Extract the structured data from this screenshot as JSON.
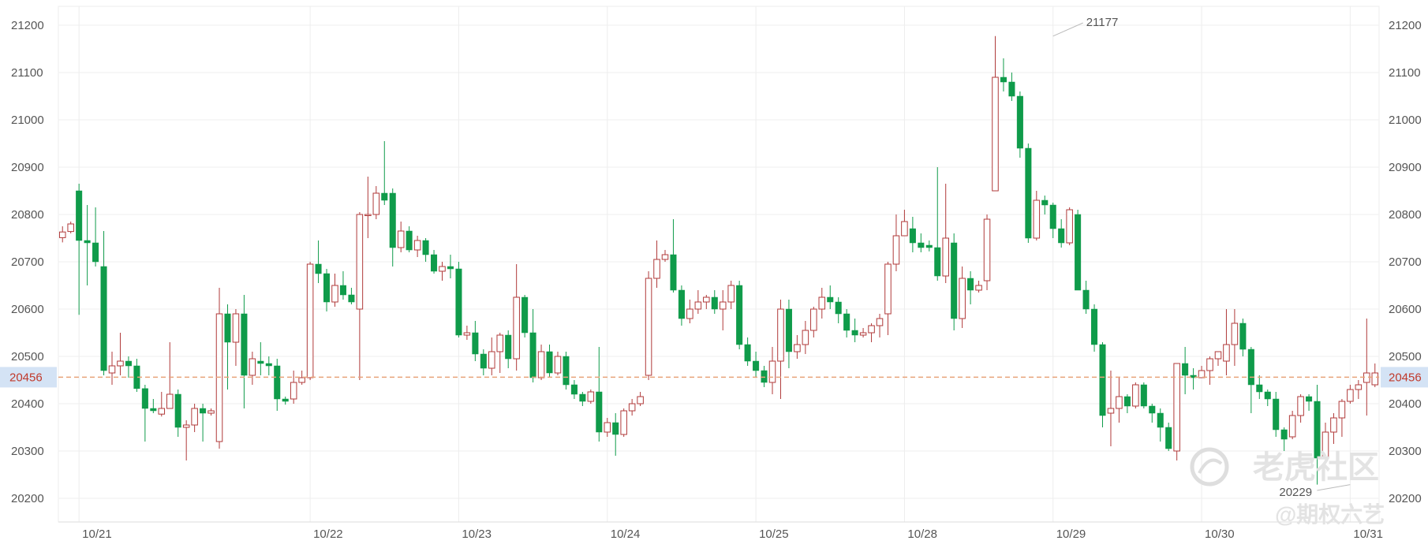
{
  "chart_data": {
    "type": "candlestick",
    "y_ticks": [
      20200,
      20300,
      20400,
      20500,
      20600,
      20700,
      20800,
      20900,
      21000,
      21100,
      21200
    ],
    "ylim": [
      20150,
      21240
    ],
    "x_tick_labels": [
      {
        "label": "10/21",
        "index": 2
      },
      {
        "label": "10/22",
        "index": 30
      },
      {
        "label": "10/23",
        "index": 48
      },
      {
        "label": "10/24",
        "index": 66
      },
      {
        "label": "10/25",
        "index": 84
      },
      {
        "label": "10/28",
        "index": 102
      },
      {
        "label": "10/29",
        "index": 120
      },
      {
        "label": "10/30",
        "index": 138
      },
      {
        "label": "10/31",
        "index": 156
      }
    ],
    "current_price": {
      "value": 20456,
      "label": "20456"
    },
    "max_annotation": {
      "label": "21177",
      "value": 21177,
      "index": 120
    },
    "min_annotation": {
      "label": "20229",
      "value": 20229,
      "index": 156
    },
    "colors": {
      "up": "#b03a3a",
      "down": "#0f9b4a",
      "current_line": "#e8a27a",
      "current_label_bg": "#d4e3f5"
    },
    "candles": [
      [
        20751,
        20763,
        20741,
        20775
      ],
      [
        20764,
        20780,
        20760,
        20785
      ],
      [
        20850,
        20745,
        20588,
        20865
      ],
      [
        20745,
        20740,
        20650,
        20820
      ],
      [
        20740,
        20700,
        20690,
        20815
      ],
      [
        20690,
        20470,
        20460,
        20765
      ],
      [
        20465,
        20480,
        20440,
        20510
      ],
      [
        20480,
        20490,
        20460,
        20550
      ],
      [
        20490,
        20480,
        20455,
        20500
      ],
      [
        20480,
        20432,
        20425,
        20495
      ],
      [
        20432,
        20390,
        20320,
        20440
      ],
      [
        20390,
        20385,
        20380,
        20410
      ],
      [
        20378,
        20390,
        20373,
        20425
      ],
      [
        20390,
        20420,
        20390,
        20530
      ],
      [
        20420,
        20350,
        20330,
        20430
      ],
      [
        20350,
        20355,
        20280,
        20365
      ],
      [
        20355,
        20390,
        20340,
        20400
      ],
      [
        20390,
        20380,
        20320,
        20400
      ],
      [
        20380,
        20385,
        20375,
        20390
      ],
      [
        20320,
        20590,
        20305,
        20645
      ],
      [
        20590,
        20530,
        20430,
        20610
      ],
      [
        20530,
        20590,
        20480,
        20600
      ],
      [
        20590,
        20460,
        20390,
        20630
      ],
      [
        20460,
        20495,
        20440,
        20510
      ],
      [
        20490,
        20485,
        20460,
        20530
      ],
      [
        20485,
        20480,
        20460,
        20500
      ],
      [
        20480,
        20410,
        20385,
        20495
      ],
      [
        20410,
        20405,
        20398,
        20415
      ],
      [
        20410,
        20445,
        20400,
        20470
      ],
      [
        20445,
        20455,
        20440,
        20470
      ],
      [
        20455,
        20695,
        20450,
        20700
      ],
      [
        20695,
        20675,
        20655,
        20745
      ],
      [
        20675,
        20615,
        20595,
        20685
      ],
      [
        20615,
        20650,
        20605,
        20675
      ],
      [
        20650,
        20630,
        20620,
        20680
      ],
      [
        20630,
        20615,
        20610,
        20645
      ],
      [
        20600,
        20800,
        20450,
        20805
      ],
      [
        20800,
        20800,
        20750,
        20880
      ],
      [
        20800,
        20845,
        20790,
        20860
      ],
      [
        20845,
        20830,
        20820,
        20955
      ],
      [
        20845,
        20730,
        20690,
        20855
      ],
      [
        20730,
        20765,
        20720,
        20785
      ],
      [
        20765,
        20725,
        20720,
        20775
      ],
      [
        20725,
        20745,
        20710,
        20755
      ],
      [
        20745,
        20715,
        20700,
        20750
      ],
      [
        20715,
        20680,
        20675,
        20725
      ],
      [
        20680,
        20690,
        20660,
        20700
      ],
      [
        20690,
        20685,
        20665,
        20715
      ],
      [
        20685,
        20545,
        20540,
        20700
      ],
      [
        20545,
        20550,
        20535,
        20565
      ],
      [
        20550,
        20505,
        20490,
        20575
      ],
      [
        20505,
        20475,
        20460,
        20515
      ],
      [
        20475,
        20510,
        20460,
        20540
      ],
      [
        20510,
        20545,
        20465,
        20550
      ],
      [
        20545,
        20495,
        20475,
        20555
      ],
      [
        20495,
        20625,
        20470,
        20695
      ],
      [
        20625,
        20550,
        20540,
        20630
      ],
      [
        20550,
        20455,
        20445,
        20600
      ],
      [
        20455,
        20510,
        20450,
        20525
      ],
      [
        20510,
        20465,
        20455,
        20525
      ],
      [
        20465,
        20500,
        20460,
        20510
      ],
      [
        20500,
        20440,
        20430,
        20510
      ],
      [
        20440,
        20420,
        20410,
        20450
      ],
      [
        20420,
        20405,
        20395,
        20425
      ],
      [
        20405,
        20425,
        20400,
        20430
      ],
      [
        20425,
        20340,
        20320,
        20520
      ],
      [
        20340,
        20360,
        20330,
        20370
      ],
      [
        20360,
        20335,
        20290,
        20380
      ],
      [
        20335,
        20385,
        20330,
        20390
      ],
      [
        20385,
        20400,
        20375,
        20410
      ],
      [
        20400,
        20415,
        20395,
        20425
      ],
      [
        20460,
        20665,
        20450,
        20680
      ],
      [
        20665,
        20705,
        20645,
        20745
      ],
      [
        20705,
        20715,
        20700,
        20725
      ],
      [
        20715,
        20640,
        20635,
        20790
      ],
      [
        20640,
        20580,
        20565,
        20650
      ],
      [
        20580,
        20600,
        20570,
        20620
      ],
      [
        20600,
        20615,
        20590,
        20640
      ],
      [
        20615,
        20625,
        20600,
        20630
      ],
      [
        20625,
        20600,
        20590,
        20640
      ],
      [
        20600,
        20615,
        20555,
        20640
      ],
      [
        20615,
        20650,
        20600,
        20660
      ],
      [
        20650,
        20525,
        20515,
        20660
      ],
      [
        20525,
        20490,
        20480,
        20540
      ],
      [
        20490,
        20470,
        20455,
        20510
      ],
      [
        20470,
        20445,
        20435,
        20480
      ],
      [
        20445,
        20490,
        20420,
        20520
      ],
      [
        20490,
        20600,
        20410,
        20620
      ],
      [
        20600,
        20510,
        20475,
        20620
      ],
      [
        20510,
        20525,
        20495,
        20545
      ],
      [
        20525,
        20555,
        20505,
        20575
      ],
      [
        20555,
        20600,
        20540,
        20605
      ],
      [
        20600,
        20625,
        20580,
        20645
      ],
      [
        20625,
        20615,
        20600,
        20650
      ],
      [
        20615,
        20590,
        20570,
        20625
      ],
      [
        20590,
        20555,
        20540,
        20600
      ],
      [
        20555,
        20545,
        20530,
        20580
      ],
      [
        20545,
        20550,
        20540,
        20560
      ],
      [
        20550,
        20565,
        20530,
        20570
      ],
      [
        20565,
        20580,
        20540,
        20590
      ],
      [
        20590,
        20695,
        20545,
        20700
      ],
      [
        20695,
        20755,
        20680,
        20800
      ],
      [
        20755,
        20785,
        20765,
        20810
      ],
      [
        20770,
        20740,
        20720,
        20795
      ],
      [
        20740,
        20730,
        20720,
        20760
      ],
      [
        20735,
        20730,
        20722,
        20745
      ],
      [
        20730,
        20670,
        20660,
        20900
      ],
      [
        20670,
        20750,
        20655,
        20865
      ],
      [
        20740,
        20580,
        20555,
        20760
      ],
      [
        20580,
        20665,
        20560,
        20690
      ],
      [
        20665,
        20640,
        20610,
        20680
      ],
      [
        20640,
        20650,
        20635,
        20660
      ],
      [
        20660,
        20790,
        20640,
        20800
      ],
      [
        20850,
        21090,
        20850,
        21177
      ],
      [
        21090,
        21080,
        21060,
        21130
      ],
      [
        21080,
        21050,
        21040,
        21100
      ],
      [
        21050,
        20940,
        20920,
        21060
      ],
      [
        20940,
        20750,
        20740,
        20950
      ],
      [
        20750,
        20830,
        20745,
        20850
      ],
      [
        20830,
        20820,
        20800,
        20840
      ],
      [
        20820,
        20770,
        20750,
        20825
      ],
      [
        20770,
        20740,
        20730,
        20790
      ],
      [
        20740,
        20810,
        20735,
        20815
      ],
      [
        20800,
        20640,
        20640,
        20810
      ],
      [
        20640,
        20600,
        20590,
        20660
      ],
      [
        20600,
        20525,
        20510,
        20610
      ],
      [
        20525,
        20375,
        20350,
        20530
      ],
      [
        20380,
        20390,
        20310,
        20470
      ],
      [
        20390,
        20415,
        20360,
        20455
      ],
      [
        20415,
        20395,
        20380,
        20420
      ],
      [
        20395,
        20440,
        20390,
        20445
      ],
      [
        20440,
        20395,
        20390,
        20445
      ],
      [
        20395,
        20380,
        20360,
        20400
      ],
      [
        20380,
        20350,
        20320,
        20390
      ],
      [
        20350,
        20305,
        20300,
        20360
      ],
      [
        20300,
        20485,
        20280,
        20485
      ],
      [
        20485,
        20460,
        20420,
        20520
      ],
      [
        20460,
        20455,
        20430,
        20475
      ],
      [
        20455,
        20470,
        20455,
        20480
      ],
      [
        20470,
        20495,
        20440,
        20500
      ],
      [
        20495,
        20510,
        20480,
        20510
      ],
      [
        20490,
        20525,
        20460,
        20600
      ],
      [
        20525,
        20570,
        20480,
        20600
      ],
      [
        20570,
        20515,
        20500,
        20580
      ],
      [
        20515,
        20440,
        20380,
        20520
      ],
      [
        20440,
        20425,
        20410,
        20460
      ],
      [
        20425,
        20410,
        20395,
        20430
      ],
      [
        20410,
        20345,
        20330,
        20425
      ],
      [
        20345,
        20325,
        20300,
        20350
      ],
      [
        20330,
        20375,
        20325,
        20385
      ],
      [
        20375,
        20415,
        20360,
        20420
      ],
      [
        20415,
        20405,
        20385,
        20420
      ],
      [
        20405,
        20285,
        20229,
        20440
      ],
      [
        20285,
        20340,
        20280,
        20360
      ],
      [
        20340,
        20370,
        20315,
        20380
      ],
      [
        20370,
        20405,
        20330,
        20410
      ],
      [
        20405,
        20430,
        20400,
        20440
      ],
      [
        20430,
        20440,
        20410,
        20450
      ],
      [
        20445,
        20465,
        20375,
        20580
      ],
      [
        20440,
        20465,
        20435,
        20485
      ]
    ]
  },
  "watermark": {
    "brand": "老虎社区",
    "handle": "@期权六艺"
  }
}
